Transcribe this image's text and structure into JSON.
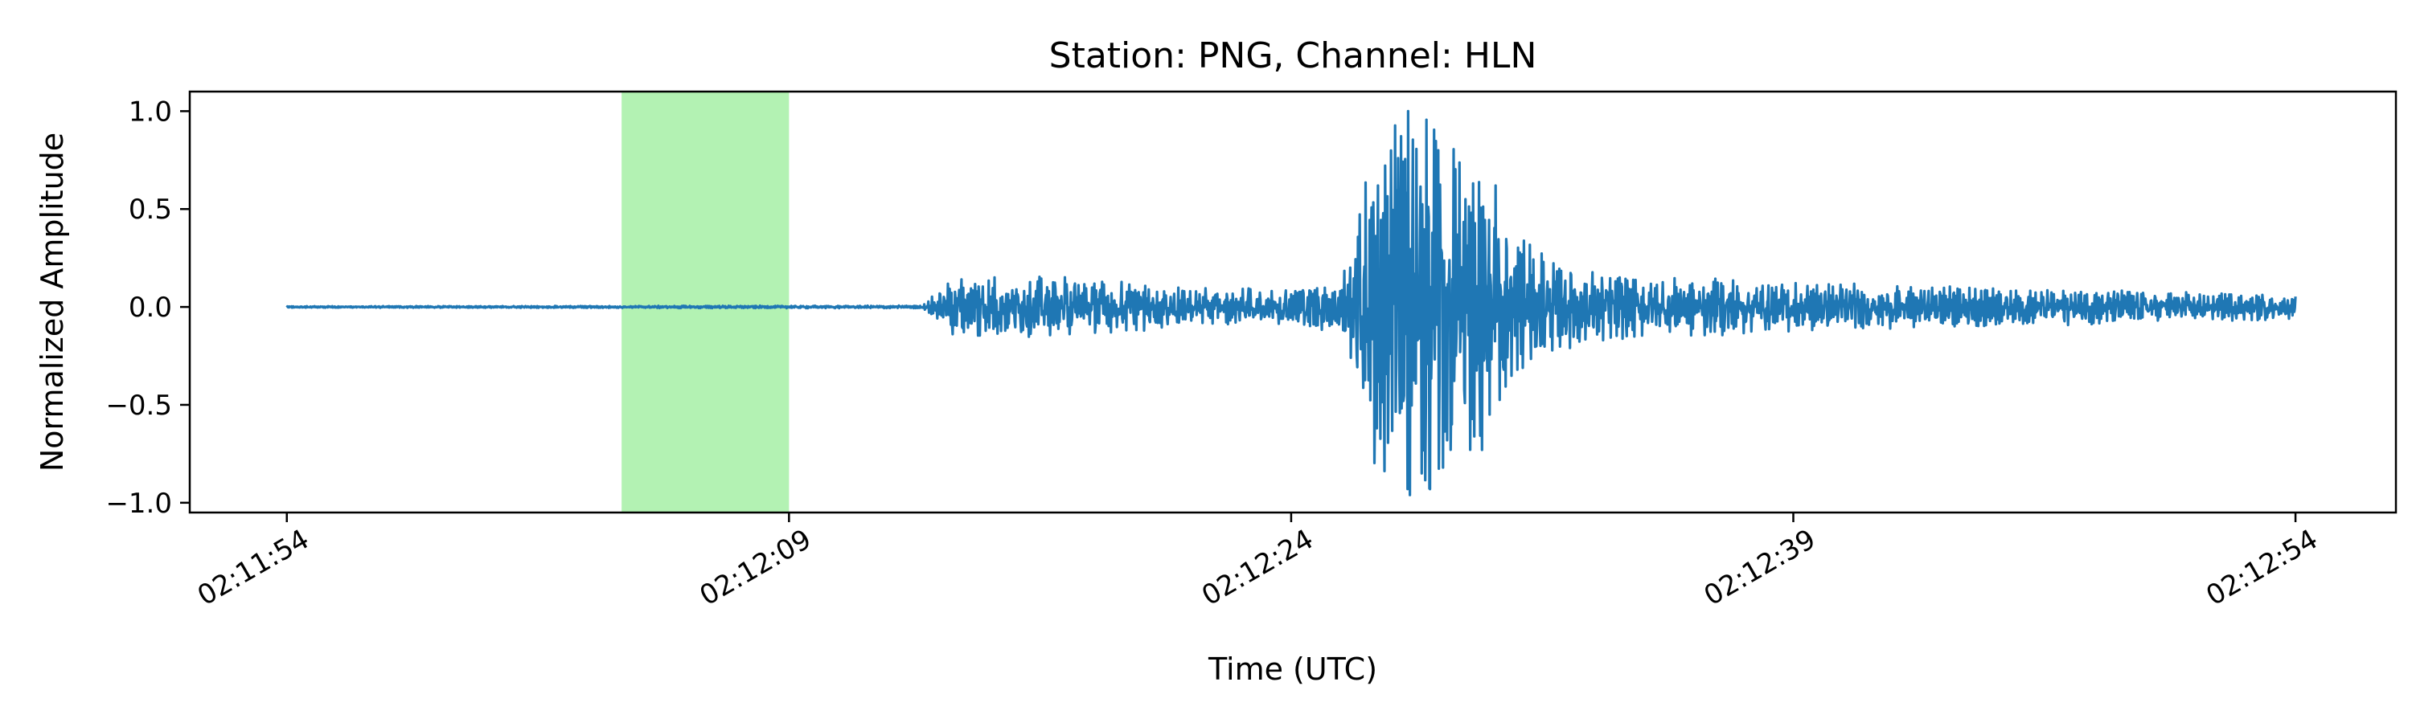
{
  "chart_data": {
    "type": "line",
    "title": "Station: PNG, Channel: HLN",
    "xlabel": "Time (UTC)",
    "ylabel": "Normalized Amplitude",
    "x_time_start": "02:11:54",
    "x_time_end": "02:12:54",
    "xlim_seconds": [
      -2.9,
      63.0
    ],
    "ylim": [
      -1.05,
      1.1
    ],
    "x_ticks": [
      "02:11:54",
      "02:12:09",
      "02:12:24",
      "02:12:39",
      "02:12:54"
    ],
    "y_ticks": [
      {
        "value": -1.0,
        "label": "−1.0"
      },
      {
        "value": -0.5,
        "label": "−0.5"
      },
      {
        "value": 0.0,
        "label": "0.0"
      },
      {
        "value": 0.5,
        "label": "0.5"
      },
      {
        "value": 1.0,
        "label": "1.0"
      }
    ],
    "highlight_span": {
      "from": "02:12:04",
      "to": "02:12:09",
      "color": "#b3f2b3"
    },
    "series": [
      {
        "color": "#1f77b4",
        "envelope": {
          "t_seconds": [
            0,
            19,
            19.6,
            20,
            21,
            24,
            28,
            31.5,
            32.5,
            33.5,
            34.5,
            35.5,
            36.5,
            38,
            40,
            43,
            48,
            55,
            60
          ],
          "half_amplitude": [
            0.003,
            0.006,
            0.09,
            0.15,
            0.13,
            0.12,
            0.07,
            0.11,
            0.72,
            0.85,
            0.75,
            0.6,
            0.35,
            0.18,
            0.13,
            0.12,
            0.09,
            0.07,
            0.05
          ]
        },
        "peaks": [
          {
            "t": 32.6,
            "value": 0.62
          },
          {
            "t": 33.2,
            "value": 0.76
          },
          {
            "t": 33.35,
            "value": -0.48
          },
          {
            "t": 33.5,
            "value": 1.0
          },
          {
            "t": 33.9,
            "value": -0.85
          },
          {
            "t": 34.15,
            "value": -0.93
          },
          {
            "t": 34.4,
            "value": 0.8
          },
          {
            "t": 34.8,
            "value": -0.6
          },
          {
            "t": 35.2,
            "value": 0.55
          },
          {
            "t": 35.7,
            "value": -0.73
          },
          {
            "t": 36.1,
            "value": 0.62
          }
        ]
      }
    ]
  }
}
